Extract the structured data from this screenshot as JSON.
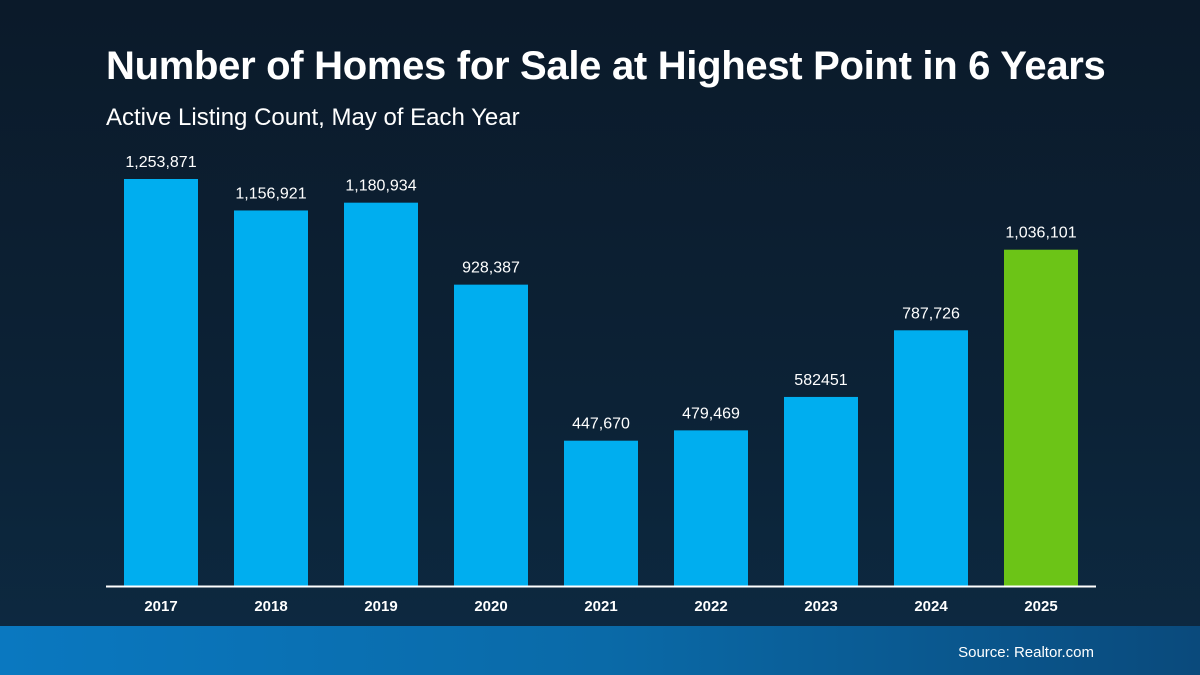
{
  "chart_data": {
    "type": "bar",
    "title": "Number of Homes for Sale at Highest Point in 6 Years",
    "subtitle": "Active Listing Count, May of Each Year",
    "categories": [
      "2017",
      "2018",
      "2019",
      "2020",
      "2021",
      "2022",
      "2023",
      "2024",
      "2025"
    ],
    "values": [
      1253871,
      1156921,
      1180934,
      928387,
      447670,
      479469,
      582451,
      787726,
      1036101
    ],
    "data_labels": [
      "1,253,871",
      "1,156,921",
      "1,180,934",
      "928,387",
      "447,670",
      "479,469",
      "582451",
      "787,726",
      "1,036,101"
    ],
    "ylim": [
      0,
      1253871
    ],
    "grid": false,
    "colors": {
      "default": "#00aeef",
      "highlight": "#6cc417",
      "highlight_category": "2025"
    }
  },
  "footer": {
    "source": "Source: Realtor.com"
  }
}
